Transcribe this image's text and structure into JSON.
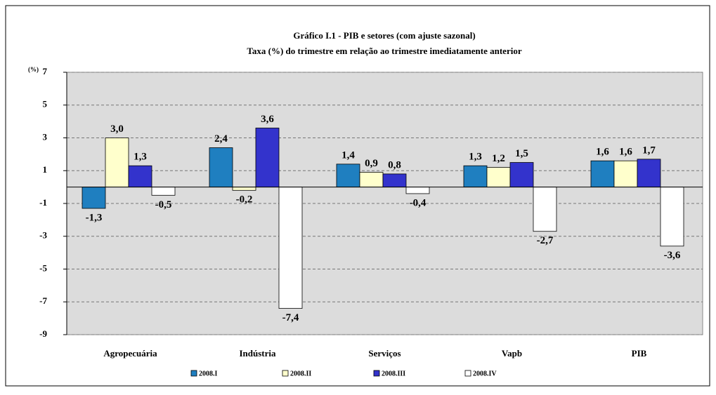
{
  "chart_data": {
    "type": "bar",
    "title": "Gráfico I.1 - PIB  e setores (com ajuste sazonal)",
    "subtitle": "Taxa (%) do trimestre em relação ao trimestre imediatamente anterior",
    "y_label": "(%)",
    "categories": [
      "Agropecuária",
      "Indústria",
      "Serviços",
      "Vapb",
      "PIB"
    ],
    "series": [
      {
        "name": "2008.I",
        "color": "#1f7fc0",
        "values": [
          -1.3,
          2.4,
          1.4,
          1.3,
          1.6
        ],
        "value_labels": [
          "-1,3",
          "2,4",
          "1,4",
          "1,3",
          "1,6"
        ]
      },
      {
        "name": "2008.II",
        "color": "#ffffcc",
        "values": [
          3.0,
          -0.2,
          0.9,
          1.2,
          1.6
        ],
        "value_labels": [
          "3,0",
          "-0,2",
          "0,9",
          "1,2",
          "1,6"
        ]
      },
      {
        "name": "2008.III",
        "color": "#3333cc",
        "values": [
          1.3,
          3.6,
          0.8,
          1.5,
          1.7
        ],
        "value_labels": [
          "1,3",
          "3,6",
          "0,8",
          "1,5",
          "1,7"
        ]
      },
      {
        "name": "2008.IV",
        "color": "#ffffff",
        "values": [
          -0.5,
          -7.4,
          -0.4,
          -2.7,
          -3.6
        ],
        "value_labels": [
          "-0,5",
          "-7,4",
          "-0,4",
          "-2,7",
          "-3,6"
        ]
      }
    ],
    "ylim": [
      -9,
      7
    ],
    "yticks": [
      7,
      5,
      3,
      1,
      -1,
      -3,
      -5,
      -7,
      -9
    ],
    "grid": true
  }
}
